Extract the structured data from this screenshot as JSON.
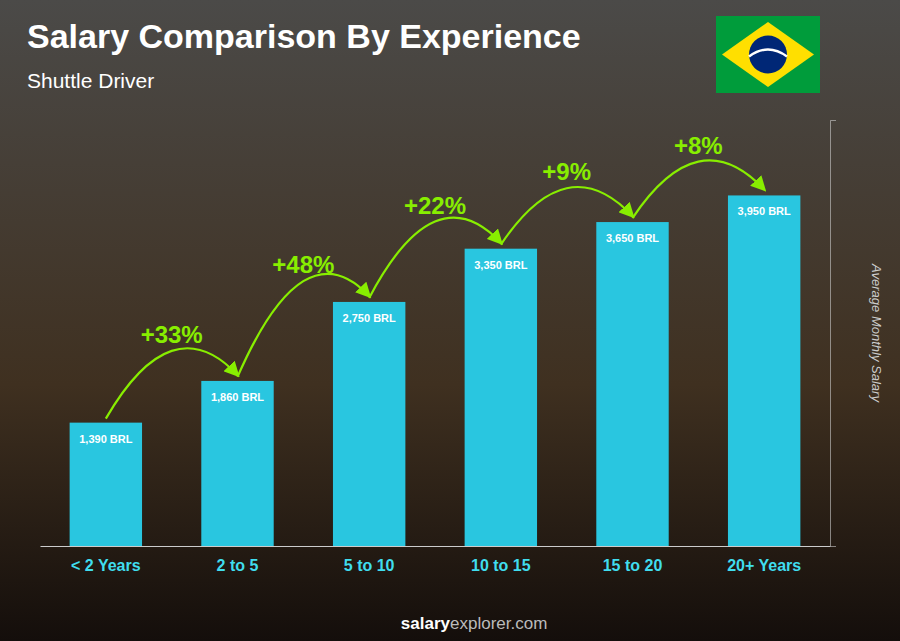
{
  "chart_data": {
    "type": "bar",
    "title": "Salary Comparison By Experience",
    "subtitle": "Shuttle Driver",
    "ylabel": "Average Monthly Salary",
    "footer": [
      "salary",
      "explorer.com"
    ],
    "categories": [
      "< 2 Years",
      "2 to 5",
      "5 to 10",
      "10 to 15",
      "15 to 20",
      "20+ Years"
    ],
    "values": [
      1390,
      1860,
      2750,
      3350,
      3650,
      3950
    ],
    "value_labels": [
      "1,390 BRL",
      "1,860 BRL",
      "2,750 BRL",
      "3,350 BRL",
      "3,650 BRL",
      "3,950 BRL"
    ],
    "data_labels": true,
    "pct_changes": [
      null,
      "+33%",
      "+48%",
      "+22%",
      "+9%",
      "+8%"
    ],
    "color": "#29c6e0",
    "ylim": [
      0,
      4800
    ],
    "yticks": [],
    "tick_labels": "x",
    "grid": false
  }
}
